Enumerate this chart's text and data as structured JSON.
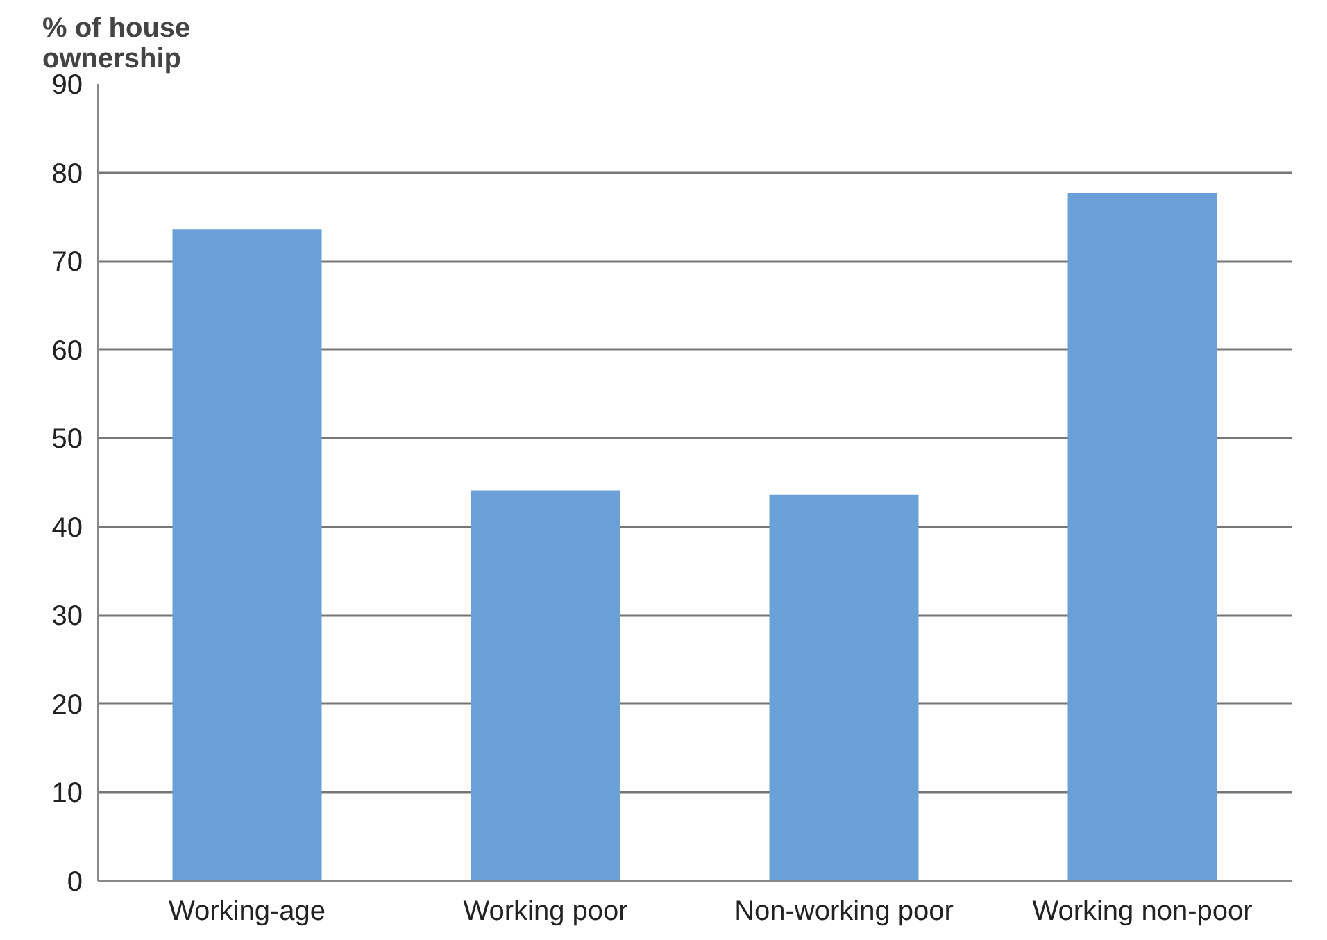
{
  "chart_data": {
    "type": "bar",
    "ylabel": "% of house\nownership",
    "categories": [
      "Working-age",
      "Working poor",
      "Non-working poor",
      "Working non-poor"
    ],
    "values": [
      73.6,
      44.1,
      43.6,
      77.7
    ],
    "color": "#6a9fd8",
    "ylim": [
      0,
      90
    ],
    "yticks": [
      0,
      10,
      20,
      30,
      40,
      50,
      60,
      70,
      80,
      90
    ],
    "grid": "y"
  }
}
